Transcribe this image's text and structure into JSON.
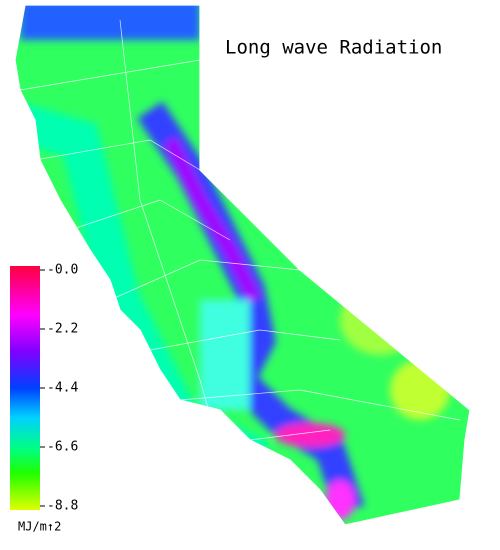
{
  "title": "Long wave Radiation",
  "colorbar": {
    "ticks": [
      {
        "value": 0,
        "label": "-0.0"
      },
      -2.2,
      -4.4,
      -6.6,
      -8.8
    ],
    "unit": "MJ/m↑2"
  }
}
